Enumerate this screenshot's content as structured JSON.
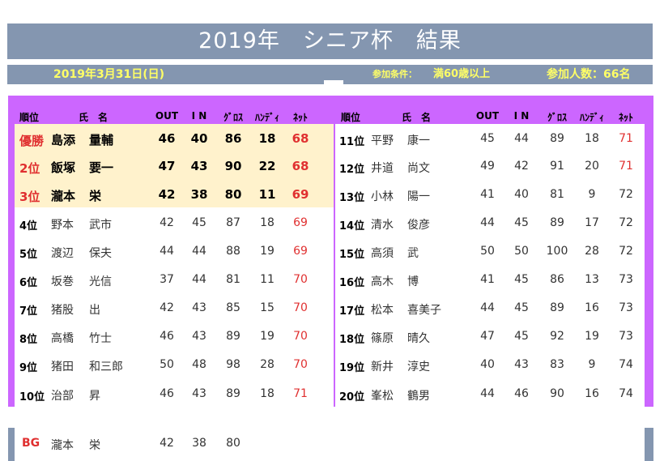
{
  "title": "2019年　シニア杯　結果",
  "info": {
    "date": "2019年3月31日(日)",
    "condition_label": "参加条件：",
    "condition_value": "満60歳以上",
    "participants": "参加人数：66名"
  },
  "headers": {
    "rank": "順位",
    "name": "氏　名",
    "out": "OUT",
    "in": "I N",
    "gross": "ｸﾞﾛｽ",
    "handicap": "ﾊﾝﾃﾞｨ",
    "net": "ﾈｯﾄ"
  },
  "left_rows": [
    {
      "rank": "優勝",
      "last": "島添",
      "first": "量輔",
      "out": "46",
      "in": "40",
      "gross": "86",
      "hdcp": "18",
      "net": "68"
    },
    {
      "rank": "2位",
      "last": "飯塚",
      "first": "要一",
      "out": "47",
      "in": "43",
      "gross": "90",
      "hdcp": "22",
      "net": "68"
    },
    {
      "rank": "3位",
      "last": "瀧本",
      "first": "栄",
      "out": "42",
      "in": "38",
      "gross": "80",
      "hdcp": "11",
      "net": "69"
    },
    {
      "rank": "4位",
      "last": "野本",
      "first": "武市",
      "out": "42",
      "in": "45",
      "gross": "87",
      "hdcp": "18",
      "net": "69"
    },
    {
      "rank": "5位",
      "last": "渡辺",
      "first": "保夫",
      "out": "44",
      "in": "44",
      "gross": "88",
      "hdcp": "19",
      "net": "69"
    },
    {
      "rank": "6位",
      "last": "坂巻",
      "first": "光信",
      "out": "37",
      "in": "44",
      "gross": "81",
      "hdcp": "11",
      "net": "70"
    },
    {
      "rank": "7位",
      "last": "猪股",
      "first": "出",
      "out": "42",
      "in": "43",
      "gross": "85",
      "hdcp": "15",
      "net": "70"
    },
    {
      "rank": "8位",
      "last": "高橋",
      "first": "竹士",
      "out": "46",
      "in": "43",
      "gross": "89",
      "hdcp": "19",
      "net": "70"
    },
    {
      "rank": "9位",
      "last": "猪田",
      "first": "和三郎",
      "out": "50",
      "in": "48",
      "gross": "98",
      "hdcp": "28",
      "net": "70"
    },
    {
      "rank": "10位",
      "last": "治部",
      "first": "昇",
      "out": "46",
      "in": "43",
      "gross": "89",
      "hdcp": "18",
      "net": "71"
    }
  ],
  "right_rows": [
    {
      "rank": "11位",
      "last": "平野",
      "first": "康一",
      "out": "45",
      "in": "44",
      "gross": "89",
      "hdcp": "18",
      "net": "71"
    },
    {
      "rank": "12位",
      "last": "井道",
      "first": "尚文",
      "out": "49",
      "in": "42",
      "gross": "91",
      "hdcp": "20",
      "net": "71"
    },
    {
      "rank": "13位",
      "last": "小林",
      "first": "陽一",
      "out": "41",
      "in": "40",
      "gross": "81",
      "hdcp": "9",
      "net": "72"
    },
    {
      "rank": "14位",
      "last": "清水",
      "first": "俊彦",
      "out": "44",
      "in": "45",
      "gross": "89",
      "hdcp": "17",
      "net": "72"
    },
    {
      "rank": "15位",
      "last": "高須",
      "first": "武",
      "out": "50",
      "in": "50",
      "gross": "100",
      "hdcp": "28",
      "net": "72"
    },
    {
      "rank": "16位",
      "last": "高木",
      "first": "博",
      "out": "41",
      "in": "45",
      "gross": "86",
      "hdcp": "13",
      "net": "73"
    },
    {
      "rank": "17位",
      "last": "松本",
      "first": "喜美子",
      "out": "44",
      "in": "45",
      "gross": "89",
      "hdcp": "16",
      "net": "73"
    },
    {
      "rank": "18位",
      "last": "篠原",
      "first": "晴久",
      "out": "47",
      "in": "45",
      "gross": "92",
      "hdcp": "19",
      "net": "73"
    },
    {
      "rank": "19位",
      "last": "新井",
      "first": "淳史",
      "out": "40",
      "in": "43",
      "gross": "83",
      "hdcp": "9",
      "net": "74"
    },
    {
      "rank": "20位",
      "last": "峯松",
      "first": "鶴男",
      "out": "44",
      "in": "46",
      "gross": "90",
      "hdcp": "16",
      "net": "74"
    }
  ],
  "best_gross": {
    "label": "BG",
    "last": "瀧本",
    "first": "栄",
    "out": "42",
    "in": "38",
    "gross": "80"
  },
  "colors": {
    "header_bar": "#8496b0",
    "panel": "#cc66ff",
    "highlight": "#fff2cc",
    "accent_text": "#ffff66",
    "net_red": "#e03030"
  }
}
